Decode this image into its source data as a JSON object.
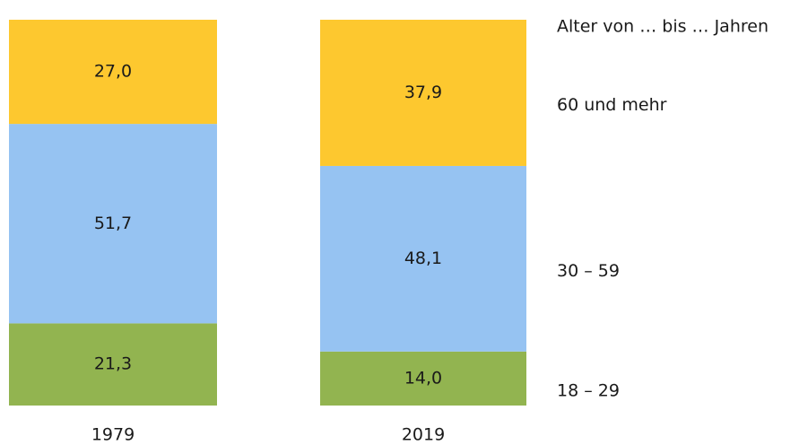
{
  "chart_data": {
    "type": "stacked_bar",
    "legend_title": "Alter von … bis … Jahren",
    "categories": [
      "1979",
      "2019"
    ],
    "series": [
      {
        "name": "18 – 29",
        "color": "#92b450",
        "values": [
          21.3,
          14.0
        ],
        "value_labels": [
          "21,3",
          "14,0"
        ]
      },
      {
        "name": "30 – 59",
        "color": "#96c3f2",
        "values": [
          51.7,
          48.1
        ],
        "value_labels": [
          "51,7",
          "48,1"
        ]
      },
      {
        "name": "60 und mehr",
        "color": "#fdc82f",
        "values": [
          27.0,
          37.9
        ],
        "value_labels": [
          "27,0",
          "37,9"
        ]
      }
    ],
    "ylim": [
      0,
      100
    ],
    "legend": "right"
  }
}
